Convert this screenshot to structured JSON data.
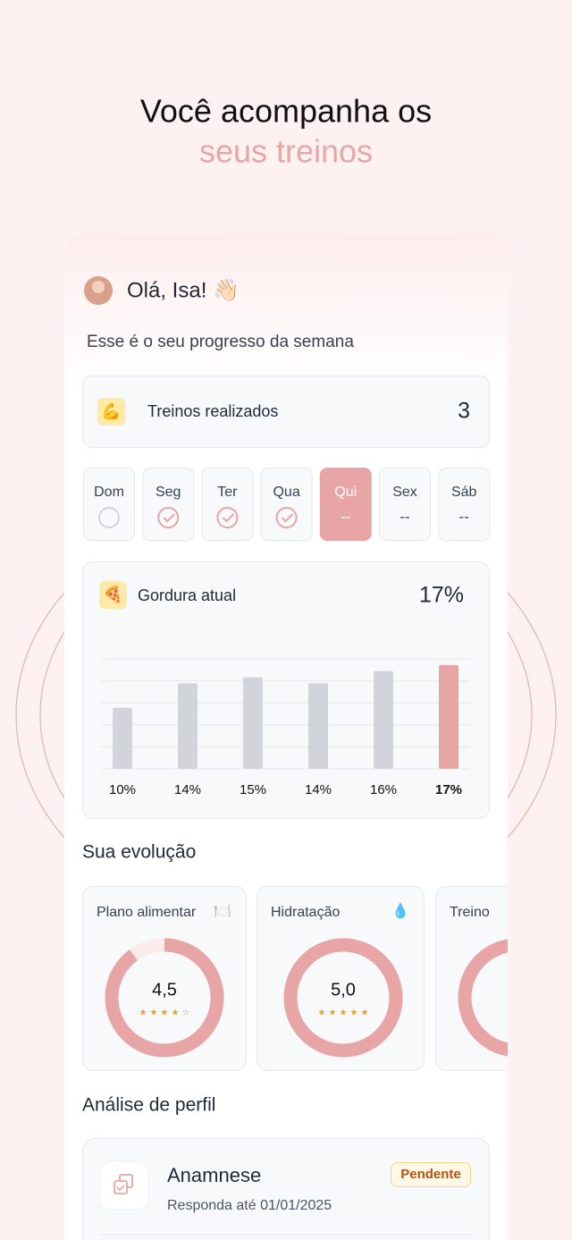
{
  "header": {
    "title_line1": "Você acompanha os",
    "title_line2": "seus treinos"
  },
  "greeting": {
    "text": "Olá, Isa! 👋🏻",
    "subtitle": "Esse é o seu progresso da semana"
  },
  "workouts": {
    "icon": "💪",
    "label": "Treinos realizados",
    "count": 3
  },
  "days": [
    {
      "label": "Dom",
      "status": "pending"
    },
    {
      "label": "Seg",
      "status": "done"
    },
    {
      "label": "Ter",
      "status": "done"
    },
    {
      "label": "Qua",
      "status": "done"
    },
    {
      "label": "Qui",
      "status": "today",
      "text": "--"
    },
    {
      "label": "Sex",
      "status": "future",
      "text": "--"
    },
    {
      "label": "Sáb",
      "status": "future",
      "text": "--"
    }
  ],
  "fat": {
    "icon": "🍕",
    "label": "Gordura atual",
    "current": "17%",
    "chart_data": {
      "type": "bar",
      "values": [
        10,
        14,
        15,
        14,
        16,
        17
      ],
      "value_labels": [
        "10%",
        "14%",
        "15%",
        "14%",
        "16%",
        "17%"
      ],
      "color": "#d1d5db",
      "highlight_color": "#e8a5a5",
      "ylim": [
        0,
        18
      ],
      "grid": true
    }
  },
  "evolution": {
    "title": "Sua evolução",
    "cards": [
      {
        "title": "Plano alimentar",
        "icon": "🍽️",
        "score": 4.5,
        "score_label": "4,5",
        "stars": 5
      },
      {
        "title": "Hidratação",
        "icon": "💧",
        "score": 5,
        "score_label": "5,0",
        "stars": 5
      },
      {
        "title": "Treino"
      }
    ]
  },
  "profile": {
    "title": "Análise de perfil",
    "item": {
      "title": "Anamnese",
      "subtitle": "Responda até 01/01/2025",
      "badge": "Pendente"
    }
  }
}
